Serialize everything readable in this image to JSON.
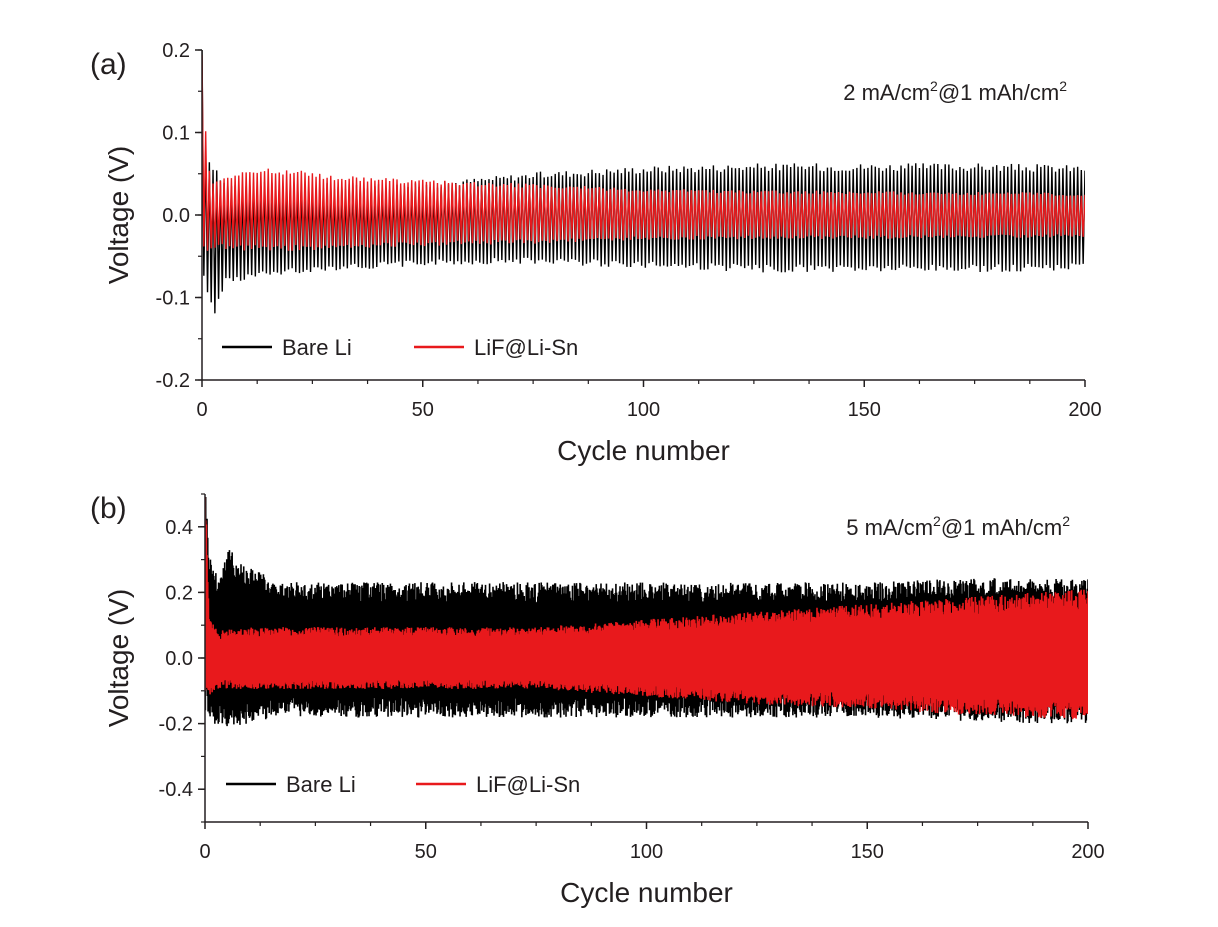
{
  "chart_data": [
    {
      "panel_label": "(a)",
      "type": "line",
      "condition": {
        "main1": "2 mA/cm",
        "sup1": "2",
        "main2": "@1 mAh/cm",
        "sup2": "2"
      },
      "xlabel": "Cycle number",
      "ylabel": "Voltage (V)",
      "xlim": [
        0,
        200
      ],
      "ylim": [
        -0.2,
        0.2
      ],
      "xticks": [
        "0",
        "50",
        "100",
        "150",
        "200"
      ],
      "yticks": [
        "-0.2",
        "-0.1",
        "0.0",
        "0.1",
        "0.2"
      ],
      "legend_position": "bottom-left",
      "series": [
        {
          "name": "Bare Li",
          "color": "#000000",
          "x": [
            0,
            1,
            2,
            3,
            5,
            10,
            25,
            50,
            75,
            100,
            125,
            150,
            175,
            200
          ],
          "upper": [
            0.2,
            0.06,
            0.058,
            0.055,
            0.04,
            0.036,
            0.035,
            0.035,
            0.048,
            0.055,
            0.058,
            0.058,
            0.058,
            0.056
          ],
          "lower": [
            -0.05,
            -0.09,
            -0.11,
            -0.12,
            -0.08,
            -0.075,
            -0.065,
            -0.058,
            -0.055,
            -0.06,
            -0.065,
            -0.065,
            -0.065,
            -0.062
          ]
        },
        {
          "name": "LiF@Li-Sn",
          "color": "#e8191c",
          "x": [
            0,
            1,
            2,
            5,
            10,
            15,
            20,
            30,
            50,
            75,
            100,
            125,
            150,
            175,
            200
          ],
          "upper": [
            0.2,
            0.08,
            0.04,
            0.045,
            0.05,
            0.054,
            0.052,
            0.045,
            0.04,
            0.035,
            0.03,
            0.028,
            0.027,
            0.026,
            0.025
          ],
          "lower": [
            -0.03,
            -0.04,
            -0.04,
            -0.038,
            -0.04,
            -0.04,
            -0.04,
            -0.038,
            -0.035,
            -0.032,
            -0.028,
            -0.027,
            -0.027,
            -0.026,
            -0.025
          ]
        }
      ]
    },
    {
      "panel_label": "(b)",
      "type": "line",
      "condition": {
        "main1": "5 mA/cm",
        "sup1": "2",
        "main2": "@1 mAh/cm",
        "sup2": "2"
      },
      "xlabel": "Cycle number",
      "ylabel": "Voltage (V)",
      "xlim": [
        0,
        200
      ],
      "ylim": [
        -0.5,
        0.5
      ],
      "xticks": [
        "0",
        "50",
        "100",
        "150",
        "200"
      ],
      "yticks": [
        "-0.4",
        "-0.2",
        "0.0",
        "0.2",
        "0.4"
      ],
      "legend_position": "bottom-left",
      "series": [
        {
          "name": "Bare Li",
          "color": "#000000",
          "x": [
            0,
            1,
            3,
            5,
            8,
            12,
            15,
            25,
            50,
            75,
            100,
            125,
            150,
            175,
            200
          ],
          "upper": [
            0.5,
            0.28,
            0.22,
            0.3,
            0.26,
            0.24,
            0.2,
            0.2,
            0.2,
            0.2,
            0.2,
            0.2,
            0.2,
            0.21,
            0.21
          ],
          "lower": [
            -0.12,
            -0.16,
            -0.17,
            -0.18,
            -0.17,
            -0.16,
            -0.15,
            -0.15,
            -0.15,
            -0.15,
            -0.15,
            -0.15,
            -0.15,
            -0.16,
            -0.17
          ]
        },
        {
          "name": "LiF@Li-Sn",
          "color": "#e8191c",
          "x": [
            0,
            1,
            3,
            10,
            25,
            50,
            75,
            100,
            125,
            150,
            175,
            200
          ],
          "upper": [
            0.5,
            0.1,
            0.07,
            0.08,
            0.08,
            0.08,
            0.08,
            0.1,
            0.12,
            0.14,
            0.16,
            0.18
          ],
          "lower": [
            -0.08,
            -0.1,
            -0.08,
            -0.08,
            -0.08,
            -0.08,
            -0.08,
            -0.1,
            -0.12,
            -0.13,
            -0.15,
            -0.16
          ]
        }
      ]
    }
  ]
}
